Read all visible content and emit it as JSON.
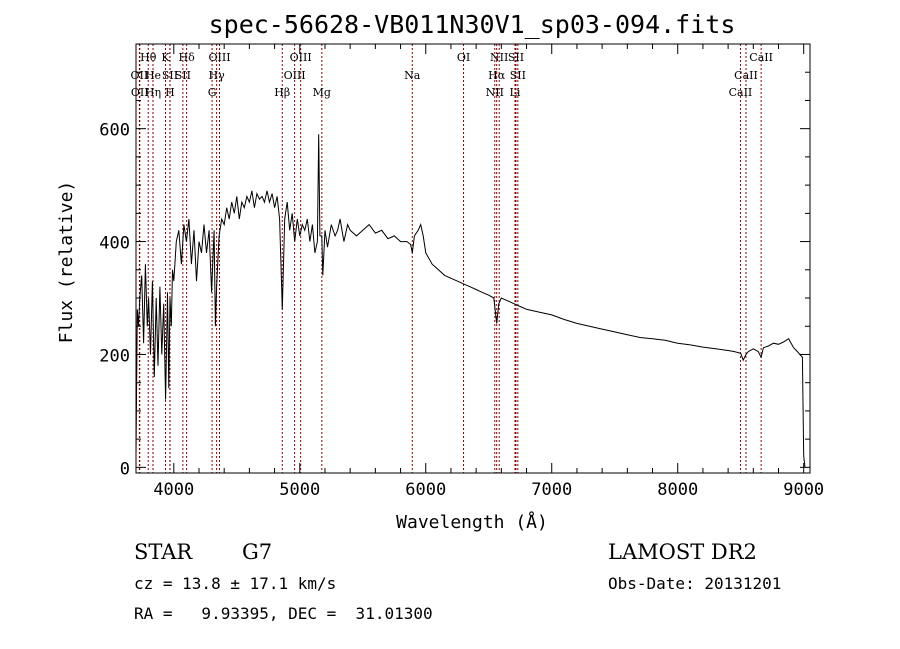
{
  "colors": {
    "background": "#ffffff",
    "axis": "#000000",
    "spectrum": "#000000",
    "line_markers": "#8b0000"
  },
  "footer": {
    "object_class": "STAR",
    "subclass": "G7",
    "survey": "LAMOST DR2",
    "redshift": "cz = 13.8 ± 17.1 km/s",
    "obs_date": "Obs-Date: 20131201",
    "coords": "RA =   9.93395, DEC =  31.01300"
  },
  "chart_data": {
    "type": "line",
    "title": "spec-56628-VB011N30V1_sp03-094.fits",
    "xlabel": "Wavelength (Å)",
    "ylabel": "Flux (relative)",
    "xlim": [
      3700,
      9050
    ],
    "ylim": [
      -10,
      750
    ],
    "x_ticks": [
      4000,
      5000,
      6000,
      7000,
      8000,
      9000
    ],
    "y_ticks": [
      0,
      200,
      400,
      600
    ],
    "grid": false,
    "series": [
      {
        "x": [
          3700,
          3710,
          3720,
          3730,
          3745,
          3760,
          3775,
          3790,
          3800,
          3815,
          3830,
          3845,
          3860,
          3875,
          3890,
          3905,
          3920,
          3935,
          3950,
          3960,
          3970,
          3980,
          3990,
          4000,
          4020,
          4040,
          4060,
          4080,
          4100,
          4120,
          4140,
          4160,
          4180,
          4200,
          4220,
          4240,
          4260,
          4280,
          4300,
          4320,
          4330,
          4340,
          4360,
          4380,
          4400,
          4420,
          4440,
          4460,
          4480,
          4500,
          4520,
          4540,
          4560,
          4580,
          4600,
          4620,
          4640,
          4660,
          4680,
          4700,
          4720,
          4740,
          4760,
          4780,
          4800,
          4820,
          4840,
          4861,
          4880,
          4900,
          4920,
          4940,
          4960,
          4980,
          5000,
          5020,
          5040,
          5060,
          5080,
          5100,
          5120,
          5140,
          5150,
          5160,
          5175,
          5183,
          5200,
          5220,
          5250,
          5280,
          5300,
          5320,
          5350,
          5380,
          5400,
          5450,
          5500,
          5550,
          5600,
          5650,
          5700,
          5750,
          5800,
          5850,
          5880,
          5893,
          5910,
          5940,
          5960,
          5980,
          6000,
          6050,
          6100,
          6150,
          6200,
          6250,
          6300,
          6350,
          6400,
          6450,
          6500,
          6540,
          6563,
          6580,
          6600,
          6650,
          6700,
          6750,
          6800,
          6900,
          7000,
          7100,
          7200,
          7300,
          7400,
          7500,
          7600,
          7700,
          7800,
          7900,
          8000,
          8100,
          8200,
          8300,
          8400,
          8450,
          8500,
          8520,
          8542,
          8560,
          8600,
          8640,
          8662,
          8680,
          8720,
          8760,
          8800,
          8840,
          8880,
          8920,
          8950,
          8970,
          8990,
          9000,
          9010
        ],
        "y": [
          20,
          280,
          250,
          300,
          340,
          220,
          360,
          250,
          300,
          200,
          330,
          160,
          300,
          180,
          320,
          200,
          290,
          120,
          310,
          140,
          300,
          250,
          350,
          330,
          400,
          420,
          360,
          430,
          400,
          440,
          360,
          420,
          330,
          400,
          380,
          430,
          380,
          420,
          310,
          420,
          250,
          320,
          410,
          440,
          430,
          460,
          440,
          470,
          450,
          480,
          440,
          470,
          460,
          480,
          470,
          490,
          460,
          485,
          475,
          480,
          470,
          490,
          470,
          485,
          460,
          480,
          440,
          280,
          440,
          470,
          420,
          450,
          400,
          440,
          410,
          430,
          420,
          440,
          400,
          430,
          380,
          400,
          590,
          410,
          410,
          340,
          420,
          390,
          430,
          410,
          420,
          440,
          400,
          430,
          420,
          410,
          420,
          430,
          415,
          420,
          405,
          410,
          400,
          400,
          395,
          380,
          410,
          420,
          430,
          410,
          380,
          360,
          350,
          340,
          335,
          330,
          325,
          320,
          315,
          310,
          305,
          300,
          255,
          290,
          300,
          295,
          290,
          285,
          280,
          275,
          270,
          262,
          255,
          250,
          245,
          240,
          235,
          230,
          228,
          225,
          220,
          217,
          213,
          210,
          207,
          205,
          202,
          190,
          200,
          205,
          210,
          205,
          195,
          212,
          215,
          220,
          218,
          222,
          228,
          212,
          205,
          200,
          195,
          20,
          0
        ],
        "name": ""
      }
    ],
    "line_markers": [
      {
        "label": "Hθ",
        "x": 3797,
        "row": 0
      },
      {
        "label": "OII",
        "x": 3727,
        "row": 1
      },
      {
        "label": "OII",
        "x": 3730,
        "row": 2
      },
      {
        "label": "He",
        "x": 3835,
        "row": 1
      },
      {
        "label": "Hη",
        "x": 3835,
        "row": 2
      },
      {
        "label": "K",
        "x": 3934,
        "row": 0
      },
      {
        "label": "SII",
        "x": 3970,
        "row": 1
      },
      {
        "label": "H",
        "x": 3969,
        "row": 2
      },
      {
        "label": "Hδ",
        "x": 4102,
        "row": 0
      },
      {
        "label": "SII",
        "x": 4072,
        "row": 1
      },
      {
        "label": "OIII",
        "x": 4363,
        "row": 0
      },
      {
        "label": "Hγ",
        "x": 4340,
        "row": 1
      },
      {
        "label": "G",
        "x": 4304,
        "row": 2
      },
      {
        "label": "Hβ",
        "x": 4861,
        "row": 2
      },
      {
        "label": "OIII",
        "x": 5007,
        "row": 0
      },
      {
        "label": "OIII",
        "x": 4959,
        "row": 1
      },
      {
        "label": "Mg",
        "x": 5175,
        "row": 2
      },
      {
        "label": "Na",
        "x": 5893,
        "row": 1
      },
      {
        "label": "OI",
        "x": 6300,
        "row": 0
      },
      {
        "label": "NII",
        "x": 6583,
        "row": 0
      },
      {
        "label": "Hα",
        "x": 6563,
        "row": 1
      },
      {
        "label": "NII",
        "x": 6548,
        "row": 2
      },
      {
        "label": "SII",
        "x": 6716,
        "row": 0
      },
      {
        "label": "SII",
        "x": 6731,
        "row": 1
      },
      {
        "label": "Li",
        "x": 6708,
        "row": 2
      },
      {
        "label": "CaII",
        "x": 8662,
        "row": 0
      },
      {
        "label": "CaII",
        "x": 8542,
        "row": 1
      },
      {
        "label": "CaII",
        "x": 8498,
        "row": 2
      }
    ]
  }
}
